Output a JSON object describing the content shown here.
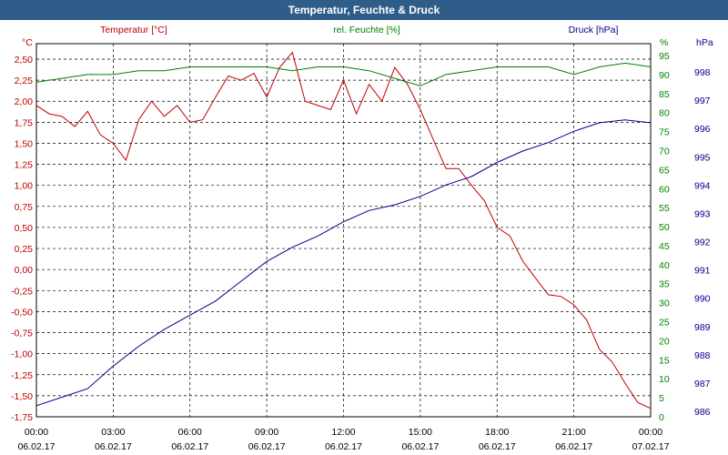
{
  "window": {
    "title": "Temperatur, Feuchte & Druck"
  },
  "colors": {
    "temperature": "#c00000",
    "humidity": "#008000",
    "pressure": "#00008b",
    "title_bar": "#2f5d8a"
  },
  "chart_data": {
    "type": "line",
    "title": "Temperatur, Feuchte & Druck",
    "grid": true,
    "x_ticks": [
      {
        "time": "00:00",
        "date": "06.02.17"
      },
      {
        "time": "03:00",
        "date": "06.02.17"
      },
      {
        "time": "06:00",
        "date": "06.02.17"
      },
      {
        "time": "09:00",
        "date": "06.02.17"
      },
      {
        "time": "12:00",
        "date": "06.02.17"
      },
      {
        "time": "15:00",
        "date": "06.02.17"
      },
      {
        "time": "18:00",
        "date": "06.02.17"
      },
      {
        "time": "21:00",
        "date": "06.02.17"
      },
      {
        "time": "00:00",
        "date": "07.02.17"
      }
    ],
    "axes": {
      "left": {
        "label": "Temperatur [°C]",
        "unit": "°C",
        "ylim": [
          -1.75,
          2.5
        ],
        "ticks": [
          "2,50",
          "2,25",
          "2,00",
          "1,75",
          "1,50",
          "1,25",
          "1,00",
          "0,75",
          "0,50",
          "0,25",
          "0,00",
          "-0,25",
          "-0,50",
          "-0,75",
          "-1,00",
          "-1,25",
          "-1,50",
          "-1,75"
        ]
      },
      "right1": {
        "label": "rel. Feuchte [%]",
        "unit": "%",
        "ylim": [
          0,
          95
        ],
        "ticks": [
          "95",
          "90",
          "85",
          "80",
          "75",
          "70",
          "65",
          "60",
          "55",
          "50",
          "45",
          "40",
          "35",
          "30",
          "25",
          "20",
          "15",
          "10",
          "5",
          "0"
        ]
      },
      "right2": {
        "label": "Druck [hPa]",
        "unit": "hPa",
        "ylim": [
          986,
          998
        ],
        "ticks": [
          "998",
          "997",
          "996",
          "995",
          "994",
          "993",
          "992",
          "991",
          "990",
          "989",
          "988",
          "987",
          "986"
        ]
      }
    },
    "series": [
      {
        "name": "Temperatur [°C]",
        "axis": "left",
        "x": [
          "00:00",
          "00:30",
          "01:00",
          "01:30",
          "02:00",
          "02:30",
          "03:00",
          "03:30",
          "04:00",
          "04:30",
          "05:00",
          "05:30",
          "06:00",
          "06:30",
          "07:00",
          "07:30",
          "08:00",
          "08:30",
          "09:00",
          "09:30",
          "10:00",
          "10:30",
          "11:00",
          "11:30",
          "12:00",
          "12:30",
          "13:00",
          "13:30",
          "14:00",
          "14:30",
          "15:00",
          "15:30",
          "16:00",
          "16:30",
          "17:00",
          "17:30",
          "18:00",
          "18:30",
          "19:00",
          "19:30",
          "20:00",
          "20:30",
          "21:00",
          "21:30",
          "22:00",
          "22:30",
          "23:00",
          "23:30",
          "24:00"
        ],
        "values": [
          1.95,
          1.85,
          1.82,
          1.7,
          1.88,
          1.6,
          1.5,
          1.3,
          1.78,
          2.0,
          1.82,
          1.95,
          1.75,
          1.78,
          2.05,
          2.3,
          2.25,
          2.33,
          2.05,
          2.4,
          2.58,
          2.0,
          1.95,
          1.9,
          2.25,
          1.85,
          2.2,
          2.0,
          2.4,
          2.2,
          1.9,
          1.55,
          1.2,
          1.2,
          1.0,
          0.82,
          0.5,
          0.4,
          0.1,
          -0.1,
          -0.3,
          -0.32,
          -0.42,
          -0.6,
          -0.95,
          -1.1,
          -1.35,
          -1.58,
          -1.65
        ]
      },
      {
        "name": "rel. Feuchte [%]",
        "axis": "right1",
        "x": [
          "00:00",
          "01:00",
          "02:00",
          "03:00",
          "04:00",
          "05:00",
          "06:00",
          "07:00",
          "08:00",
          "09:00",
          "10:00",
          "11:00",
          "12:00",
          "13:00",
          "14:00",
          "15:00",
          "16:00",
          "17:00",
          "18:00",
          "19:00",
          "20:00",
          "21:00",
          "22:00",
          "23:00",
          "24:00"
        ],
        "values": [
          88,
          89,
          90,
          90,
          91,
          91,
          92,
          92,
          92,
          92,
          91,
          92,
          92,
          91,
          89,
          87,
          90,
          91,
          92,
          92,
          92,
          90,
          92,
          93,
          92
        ]
      },
      {
        "name": "Druck [hPa]",
        "axis": "right2",
        "x": [
          "00:00",
          "01:00",
          "02:00",
          "03:00",
          "04:00",
          "05:00",
          "06:00",
          "07:00",
          "08:00",
          "09:00",
          "10:00",
          "11:00",
          "12:00",
          "13:00",
          "14:00",
          "15:00",
          "16:00",
          "17:00",
          "18:00",
          "19:00",
          "20:00",
          "21:00",
          "22:00",
          "23:00",
          "24:00"
        ],
        "values": [
          986.2,
          986.5,
          986.8,
          987.6,
          988.3,
          988.9,
          989.4,
          989.9,
          990.6,
          991.3,
          991.8,
          992.2,
          992.7,
          993.1,
          993.3,
          993.6,
          994.0,
          994.3,
          994.8,
          995.2,
          995.5,
          995.9,
          996.2,
          996.3,
          996.2
        ]
      }
    ]
  }
}
